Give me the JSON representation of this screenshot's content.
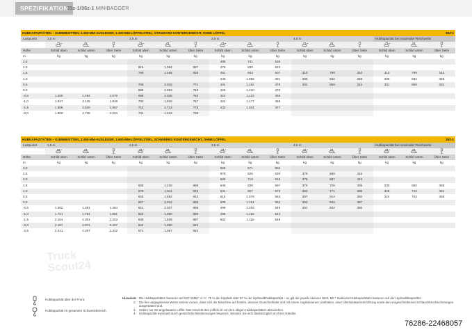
{
  "header": {
    "tab": "SPEZIFIKATION",
    "model_bold": "35z-1/36z-1",
    "model_rest": " MINIBAGGER"
  },
  "table1": {
    "title": "HUBKAPAZITÄTEN – GUMMIKETTEN, 2.450-MM-AUSLEGER, 1.300-MM-LÖFFELSTIEL, STANDARD-KONTERGEWICHT, OHNE LÖFFEL",
    "code": "35Z-1",
    "lastpunkt": "Lastpunkt",
    "reaches": [
      "1,5 m",
      "2,5 m",
      "3,5 m",
      "4,5 m"
    ],
    "max_reach": "Hubkapazität bei maximaler Reichweite",
    "hoehe": "Höhe",
    "subheads": [
      "Schild oben",
      "Schild unten",
      "Über Seite"
    ],
    "unit_m": "m",
    "unit_kg": "kg",
    "rows": [
      [
        "2,5",
        "",
        "",
        "",
        "",
        "",
        "",
        "488",
        "741",
        "536",
        "",
        "",
        "",
        "",
        "",
        ""
      ],
      [
        "2,0",
        "",
        "",
        "",
        "816",
        "1.084",
        "887",
        "476",
        "830",
        "523",
        "",
        "",
        "",
        "",
        "",
        ""
      ],
      [
        "1,5",
        "",
        "",
        "",
        "768",
        "1.486",
        "836",
        "461",
        "943",
        "507",
        "310",
        "799",
        "343",
        "310",
        "799",
        "343"
      ],
      [
        "1,0",
        "",
        "",
        "",
        "",
        "",
        "",
        "446",
        "1.058",
        "491",
        "305",
        "832",
        "338",
        "305",
        "832",
        "338"
      ],
      [
        "0,5",
        "",
        "",
        "",
        "706",
        "2.016",
        "771",
        "434",
        "1.152",
        "478",
        "301",
        "859",
        "334",
        "301",
        "859",
        "334"
      ],
      [
        "0,0",
        "",
        "",
        "",
        "698",
        "2.063",
        "763",
        "426",
        "1.210",
        "470",
        "",
        "",
        "",
        "",
        "",
        ""
      ],
      [
        "-0,5",
        "1.460",
        "1.494",
        "1.579",
        "698",
        "2.026",
        "762",
        "423",
        "1.223",
        "466",
        "",
        "",
        "",
        "",
        "",
        ""
      ],
      [
        "-1,0",
        "1.847",
        "2.115",
        "1.948",
        "702",
        "1.916",
        "767",
        "424",
        "1.177",
        "468",
        "",
        "",
        "",
        "",
        "",
        ""
      ],
      [
        "-1,5",
        "1.866",
        "2.840",
        "1.967",
        "713",
        "1.713",
        "778",
        "433",
        "1.024",
        "477",
        "",
        "",
        "",
        "",
        "",
        ""
      ],
      [
        "-2,0",
        "1.902",
        "2.738",
        "2.004",
        "731",
        "1.343",
        "798",
        "",
        "",
        "",
        "",
        "",
        "",
        "",
        "",
        ""
      ]
    ]
  },
  "table2": {
    "title": "HUBKAPAZITÄTEN – GUMMIKETTEN, 2.450-MM-AUSLEGER, 1.600-MM-LÖFFELSTIEL, SCHWERES KONTERGEWICHT, OHNE LÖFFEL",
    "code": "35Z-1",
    "lastpunkt": "Lastpunkt",
    "reaches": [
      "1,5 m",
      "2,5 m",
      "3,5 m",
      "4,5 m"
    ],
    "max_reach": "Hubkapazität bei maximaler Reichweite",
    "hoehe": "Höhe",
    "subheads": [
      "Schild oben",
      "Schild unten",
      "Über Seite"
    ],
    "unit_m": "m",
    "unit_kg": "kg",
    "rows": [
      [
        "3,0",
        "",
        "",
        "",
        "",
        "",
        "",
        "558",
        "571",
        "604",
        "",
        "",
        "",
        "",
        "",
        ""
      ],
      [
        "2,5",
        "",
        "",
        "",
        "",
        "",
        "",
        "578",
        "625",
        "630",
        "379",
        "669",
        "416",
        "",
        "",
        ""
      ],
      [
        "2,0",
        "",
        "",
        "",
        "",
        "",
        "",
        "565",
        "719",
        "615",
        "376",
        "687",
        "412",
        "",
        "",
        ""
      ],
      [
        "1,5",
        "",
        "",
        "",
        "925",
        "1.219",
        "998",
        "548",
        "839",
        "597",
        "370",
        "726",
        "405",
        "333",
        "650",
        "365"
      ],
      [
        "1,0",
        "",
        "",
        "",
        "876",
        "1.611",
        "946",
        "531",
        "967",
        "579",
        "363",
        "771",
        "398",
        "328",
        "743",
        "361"
      ],
      [
        "0,5",
        "",
        "",
        "",
        "843",
        "1.882",
        "912",
        "516",
        "1.079",
        "563",
        "357",
        "814",
        "392",
        "324",
        "703",
        "356"
      ],
      [
        "0,0",
        "",
        "",
        "",
        "827",
        "2.012",
        "895",
        "505",
        "1.161",
        "552",
        "353",
        "843",
        "387",
        "",
        "",
        ""
      ],
      [
        "-0,5",
        "1.262",
        "1.291",
        "1.364",
        "821",
        "2.037",
        "889",
        "499",
        "1.203",
        "545",
        "351",
        "842",
        "386",
        "",
        "",
        ""
      ],
      [
        "-1,0",
        "1.721",
        "1.761",
        "1.861",
        "822",
        "1.980",
        "890",
        "498",
        "1.194",
        "544",
        "",
        "",
        "",
        "",
        "",
        ""
      ],
      [
        "-1,5",
        "2.154",
        "2.301",
        "2.253",
        "830",
        "1.839",
        "897",
        "502",
        "1.118",
        "548",
        "",
        "",
        "",
        "",
        "",
        ""
      ],
      [
        "-2,0",
        "2.187",
        "2.974",
        "2.287",
        "844",
        "1.580",
        "912",
        "",
        "",
        "",
        "",
        "",
        "",
        "",
        "",
        ""
      ],
      [
        "-2,5",
        "2.241",
        "2.297",
        "2.342",
        "871",
        "1.067",
        "942",
        "",
        "",
        "",
        "",
        "",
        "",
        "",
        "",
        ""
      ]
    ]
  },
  "notes": {
    "label": "Hinweise:",
    "items": [
      "Die Hubkapazitäten basieren auf ISO 10567, d. h.: 75 % der Kipplast oder 87 % der Hydraulikhubkapazität – es gilt der jeweils kleinere Wert. Mit * markierte Hubkapazitäten basieren auf der Hydraulikkapazität.",
      "Die hier angegebenen Werte setzen voraus, dass sich die Maschine auf festem, ebenen Grund befindet und mit einem zugelassenen Lasthaken, einer Überlastwarneinrichtung sowie den vorgeschriebenen Schlauchbruchsicherungen ausgestattet sind.",
      "Heben nur mit angebautem Löffel. Das Gewicht des Löffels ist von den obigen Hubkapazitäten abzuziehen.",
      "Hubkapazität eventuell durch gesetzliche Bestimmungen begrenzt. Wenden Sie sich diesbezüglich an Ihren Händler."
    ]
  },
  "legend": [
    "Hubkapazität über der Front.",
    "Hubkapazität im gesamten Schwenkbereich."
  ],
  "watermark": "Truck Scout24",
  "image_id": "76286-22468057"
}
